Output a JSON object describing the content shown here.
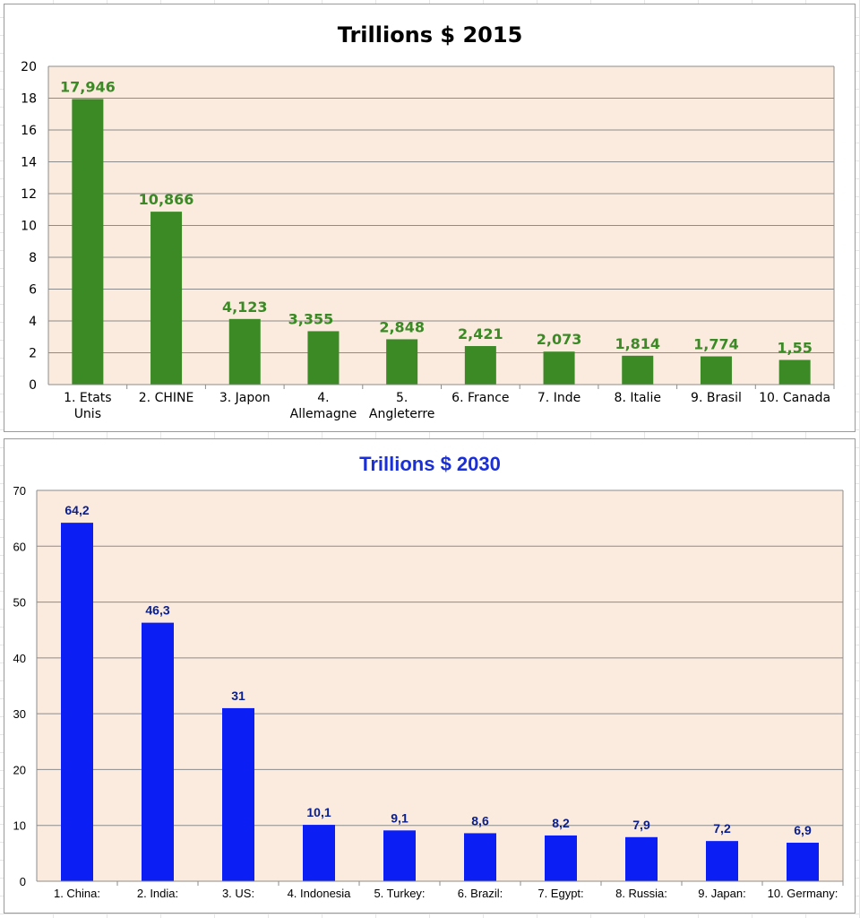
{
  "chart_data": [
    {
      "type": "bar",
      "title": "Trillions $ 2015",
      "xlabel": "",
      "ylabel": "",
      "ylim": [
        0,
        20
      ],
      "yticks": [
        "0",
        "2",
        "4",
        "6",
        "8",
        "10",
        "12",
        "14",
        "16",
        "18",
        "20"
      ],
      "categories": [
        "1. Etats Unis",
        "2. CHINE",
        "3. Japon",
        "4. Allemagne",
        "5. Angleterre",
        "6. France",
        "7. Inde",
        "8. Italie",
        "9. Brasil",
        "10. Canada"
      ],
      "values": [
        17.946,
        10.866,
        4.123,
        3.355,
        2.848,
        2.421,
        2.073,
        1.814,
        1.774,
        1.55
      ],
      "data_labels": [
        "17,946",
        "10,866",
        "4,123",
        "3,355",
        "2,848",
        "2,421",
        "2,073",
        "1,814",
        "1,774",
        "1,55"
      ],
      "grid": true,
      "colors": {
        "bar": "#3b8a26",
        "label": "#3b8a26",
        "plot_bg": "#fbeade",
        "title": "#000000"
      }
    },
    {
      "type": "bar",
      "title": "Trillions $ 2030",
      "xlabel": "",
      "ylabel": "",
      "ylim": [
        0,
        70
      ],
      "yticks": [
        "0",
        "10",
        "20",
        "30",
        "40",
        "50",
        "60",
        "70"
      ],
      "categories": [
        "1. China:",
        "2. India:",
        "3. US:",
        "4. Indonesia",
        "5. Turkey:",
        "6. Brazil:",
        "7. Egypt:",
        "8. Russia:",
        "9. Japan:",
        "10. Germany:"
      ],
      "values": [
        64.2,
        46.3,
        31,
        10.1,
        9.1,
        8.6,
        8.2,
        7.9,
        7.2,
        6.9
      ],
      "data_labels": [
        "64,2",
        "46,3",
        "31",
        "10,1",
        "9,1",
        "8,6",
        "8,2",
        "7,9",
        "7,2",
        "6,9"
      ],
      "grid": true,
      "colors": {
        "bar": "#0b1ff5",
        "label": "#0a1f8f",
        "plot_bg": "#fbeade",
        "title": "#1a2fd6"
      }
    }
  ]
}
